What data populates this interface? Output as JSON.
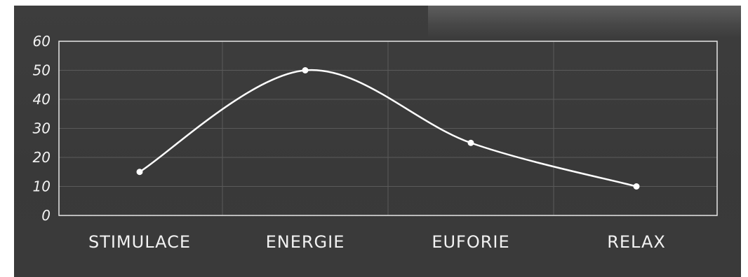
{
  "chart_data": {
    "type": "line",
    "categories": [
      "STIMULACE",
      "ENERGIE",
      "EUFORIE",
      "RELAX"
    ],
    "values": [
      15,
      50,
      25,
      10
    ],
    "yticks": [
      0,
      10,
      20,
      30,
      40,
      50,
      60
    ],
    "ylim": [
      0,
      60
    ],
    "grid": true,
    "smooth": true,
    "colors": {
      "background": "#3b3b3b",
      "line": "#ffffff",
      "grid": "#5a5a5a",
      "axis": "#e6e6e6",
      "text": "#f2f2f2"
    }
  }
}
